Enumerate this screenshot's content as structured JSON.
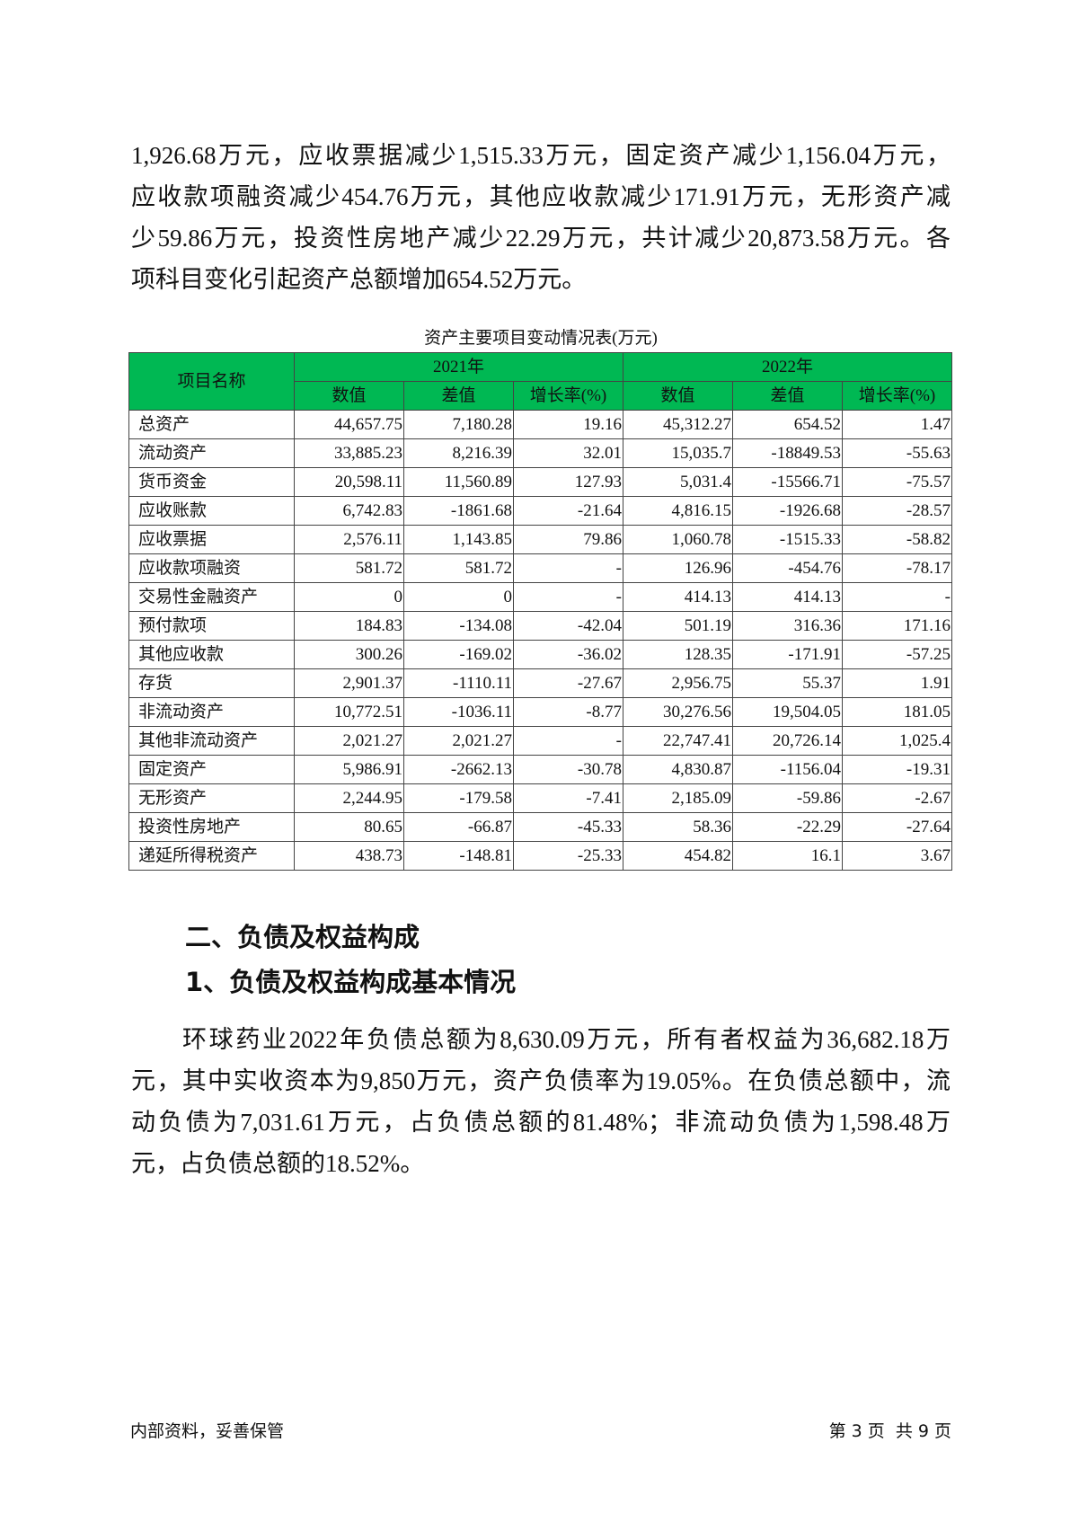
{
  "intro_lines": [
    "1,926.68万元，应收票据减少1,515.33万元，固定资产减少1,156.04万元，",
    "应收款项融资减少454.76万元，其他应收款减少171.91万元，无形资产减",
    "少59.86万元，投资性房地产减少22.29万元，共计减少20,873.58万元。各",
    "项科目变化引起资产总额增加654.52万元。"
  ],
  "table": {
    "caption": "资产主要项目变动情况表(万元)",
    "header_name": "项目名称",
    "years": [
      "2021年",
      "2022年"
    ],
    "sub_headers": [
      "数值",
      "差值",
      "增长率(%)",
      "数值",
      "差值",
      "增长率(%)"
    ],
    "header_color": "#00b853",
    "rows": [
      [
        "总资产",
        "44,657.75",
        "7,180.28",
        "19.16",
        "45,312.27",
        "654.52",
        "1.47"
      ],
      [
        "流动资产",
        "33,885.23",
        "8,216.39",
        "32.01",
        "15,035.7",
        "-18849.53",
        "-55.63"
      ],
      [
        "货币资金",
        "20,598.11",
        "11,560.89",
        "127.93",
        "5,031.4",
        "-15566.71",
        "-75.57"
      ],
      [
        "应收账款",
        "6,742.83",
        "-1861.68",
        "-21.64",
        "4,816.15",
        "-1926.68",
        "-28.57"
      ],
      [
        "应收票据",
        "2,576.11",
        "1,143.85",
        "79.86",
        "1,060.78",
        "-1515.33",
        "-58.82"
      ],
      [
        "应收款项融资",
        "581.72",
        "581.72",
        "-",
        "126.96",
        "-454.76",
        "-78.17"
      ],
      [
        "交易性金融资产",
        "0",
        "0",
        "-",
        "414.13",
        "414.13",
        "-"
      ],
      [
        "预付款项",
        "184.83",
        "-134.08",
        "-42.04",
        "501.19",
        "316.36",
        "171.16"
      ],
      [
        "其他应收款",
        "300.26",
        "-169.02",
        "-36.02",
        "128.35",
        "-171.91",
        "-57.25"
      ],
      [
        "存货",
        "2,901.37",
        "-1110.11",
        "-27.67",
        "2,956.75",
        "55.37",
        "1.91"
      ],
      [
        "非流动资产",
        "10,772.51",
        "-1036.11",
        "-8.77",
        "30,276.56",
        "19,504.05",
        "181.05"
      ],
      [
        "其他非流动资产",
        "2,021.27",
        "2,021.27",
        "-",
        "22,747.41",
        "20,726.14",
        "1,025.4"
      ],
      [
        "固定资产",
        "5,986.91",
        "-2662.13",
        "-30.78",
        "4,830.87",
        "-1156.04",
        "-19.31"
      ],
      [
        "无形资产",
        "2,244.95",
        "-179.58",
        "-7.41",
        "2,185.09",
        "-59.86",
        "-2.67"
      ],
      [
        "投资性房地产",
        "80.65",
        "-66.87",
        "-45.33",
        "58.36",
        "-22.29",
        "-27.64"
      ],
      [
        "递延所得税资产",
        "438.73",
        "-148.81",
        "-25.33",
        "454.82",
        "16.1",
        "3.67"
      ]
    ]
  },
  "section_heading": "二、负债及权益构成",
  "sub_heading": "1、负债及权益构成基本情况",
  "body_lines": [
    "环球药业2022年负债总额为8,630.09万元，所有者权益为36,682.18万",
    "元，其中实收资本为9,850万元，资产负债率为19.05%。在负债总额中，流",
    "动负债为7,031.61万元，占负债总额的81.48%；非流动负债为1,598.48万",
    "元，占负债总额的18.52%。"
  ],
  "footer": {
    "left": "内部资料，妥善保管",
    "right": "第 3 页  共 9 页"
  }
}
